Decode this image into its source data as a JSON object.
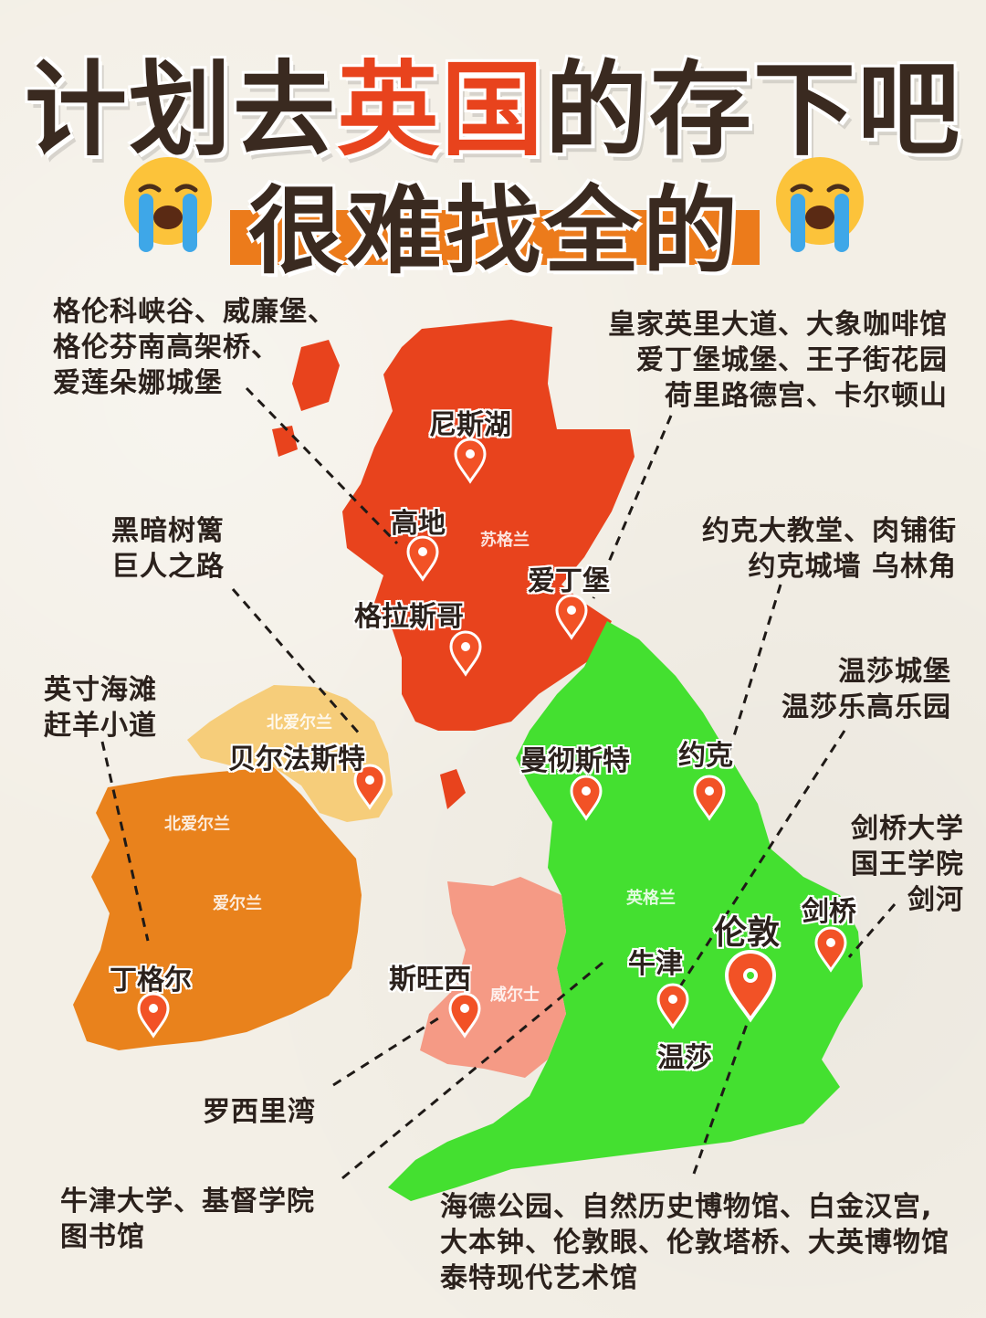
{
  "title": {
    "line1_a": "计划去",
    "line1_b": "英国",
    "line1_c": "的存下吧",
    "line2": "很难找全的"
  },
  "emoji_icon": "loudly-crying-face-icon",
  "colors": {
    "background": "#f3efe6",
    "accent_red": "#e8431d",
    "accent_orange": "#ec7b1b",
    "scotland": "#e8431d",
    "england": "#44e030",
    "wales": "#f59a85",
    "northern_ireland": "#f6cd7a",
    "ireland": "#e9821c",
    "pin": "#f25226"
  },
  "regions": {
    "scotland": "苏格兰",
    "northern_ireland": "北爱尔兰",
    "northern_ireland_2": "北爱尔兰",
    "ireland": "爱尔兰",
    "england": "英格兰",
    "wales": "威尔士"
  },
  "cities": {
    "loch_ness": "尼斯湖",
    "highlands": "高地",
    "edinburgh": "爱丁堡",
    "glasgow": "格拉斯哥",
    "belfast": "贝尔法斯特",
    "manchester": "曼彻斯特",
    "york": "约克",
    "dingle": "丁格尔",
    "swansea": "斯旺西",
    "oxford": "牛津",
    "london": "伦敦",
    "cambridge": "剑桥",
    "windsor": "温莎"
  },
  "attractions": {
    "highlands": [
      "格伦科峡谷、威廉堡、",
      "格伦芬南高架桥、",
      "爱莲朵娜城堡"
    ],
    "edinburgh": [
      "皇家英里大道、大象咖啡馆",
      "爱丁堡城堡、王子街花园",
      "荷里路德宫、卡尔顿山"
    ],
    "belfast": [
      "黑暗树篱",
      "巨人之路"
    ],
    "york": [
      "约克大教堂、肉铺街",
      "约克城墙 乌林角"
    ],
    "windsor": [
      "温莎城堡",
      "温莎乐高乐园"
    ],
    "dingle": [
      "英寸海滩",
      "赶羊小道"
    ],
    "cambridge": [
      "剑桥大学",
      "国王学院",
      "剑河"
    ],
    "swansea": [
      "罗西里湾"
    ],
    "oxford": [
      "牛津大学、基督学院",
      "图书馆"
    ],
    "london": [
      "海德公园、自然历史博物馆、白金汉宫,",
      "大本钟、伦敦眼、伦敦塔桥、大英博物馆",
      "泰特现代艺术馆"
    ]
  }
}
